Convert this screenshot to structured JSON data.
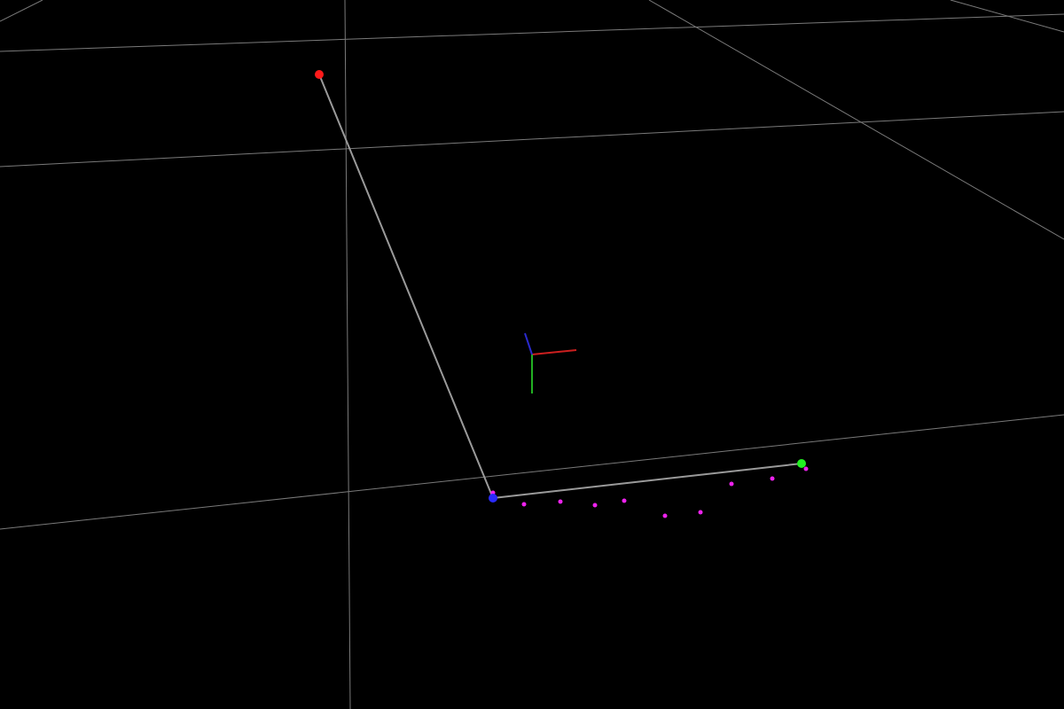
{
  "scene": {
    "background": "#000000",
    "grid_color": "#7a7a7a",
    "path_color": "#9a9a9a",
    "axes": {
      "x_color": "#cc1f1f",
      "y_color": "#22b022",
      "z_color": "#2a2acc"
    },
    "markers": [
      {
        "name": "start",
        "color": "#ff1a1a"
      },
      {
        "name": "corner",
        "color": "#2a2aff"
      },
      {
        "name": "end",
        "color": "#22ee22"
      }
    ],
    "sample_points": {
      "color": "#ee22ee",
      "count": 11
    }
  }
}
